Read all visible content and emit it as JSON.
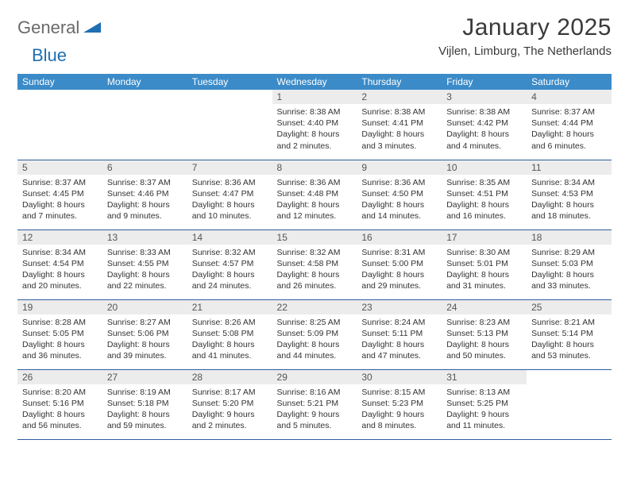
{
  "brand": {
    "part1": "General",
    "part2": "Blue"
  },
  "title": "January 2025",
  "location": "Vijlen, Limburg, The Netherlands",
  "colors": {
    "header_bg": "#3b8bc8",
    "header_text": "#ffffff",
    "daynum_bg": "#ececec",
    "border": "#2f5e9e",
    "logo_gray": "#6a6a6a",
    "logo_blue": "#1f6fb2"
  },
  "weekdays": [
    "Sunday",
    "Monday",
    "Tuesday",
    "Wednesday",
    "Thursday",
    "Friday",
    "Saturday"
  ],
  "weeks": [
    [
      {
        "empty": true
      },
      {
        "empty": true
      },
      {
        "empty": true
      },
      {
        "num": "1",
        "sunrise": "Sunrise: 8:38 AM",
        "sunset": "Sunset: 4:40 PM",
        "day1": "Daylight: 8 hours",
        "day2": "and 2 minutes."
      },
      {
        "num": "2",
        "sunrise": "Sunrise: 8:38 AM",
        "sunset": "Sunset: 4:41 PM",
        "day1": "Daylight: 8 hours",
        "day2": "and 3 minutes."
      },
      {
        "num": "3",
        "sunrise": "Sunrise: 8:38 AM",
        "sunset": "Sunset: 4:42 PM",
        "day1": "Daylight: 8 hours",
        "day2": "and 4 minutes."
      },
      {
        "num": "4",
        "sunrise": "Sunrise: 8:37 AM",
        "sunset": "Sunset: 4:44 PM",
        "day1": "Daylight: 8 hours",
        "day2": "and 6 minutes."
      }
    ],
    [
      {
        "num": "5",
        "sunrise": "Sunrise: 8:37 AM",
        "sunset": "Sunset: 4:45 PM",
        "day1": "Daylight: 8 hours",
        "day2": "and 7 minutes."
      },
      {
        "num": "6",
        "sunrise": "Sunrise: 8:37 AM",
        "sunset": "Sunset: 4:46 PM",
        "day1": "Daylight: 8 hours",
        "day2": "and 9 minutes."
      },
      {
        "num": "7",
        "sunrise": "Sunrise: 8:36 AM",
        "sunset": "Sunset: 4:47 PM",
        "day1": "Daylight: 8 hours",
        "day2": "and 10 minutes."
      },
      {
        "num": "8",
        "sunrise": "Sunrise: 8:36 AM",
        "sunset": "Sunset: 4:48 PM",
        "day1": "Daylight: 8 hours",
        "day2": "and 12 minutes."
      },
      {
        "num": "9",
        "sunrise": "Sunrise: 8:36 AM",
        "sunset": "Sunset: 4:50 PM",
        "day1": "Daylight: 8 hours",
        "day2": "and 14 minutes."
      },
      {
        "num": "10",
        "sunrise": "Sunrise: 8:35 AM",
        "sunset": "Sunset: 4:51 PM",
        "day1": "Daylight: 8 hours",
        "day2": "and 16 minutes."
      },
      {
        "num": "11",
        "sunrise": "Sunrise: 8:34 AM",
        "sunset": "Sunset: 4:53 PM",
        "day1": "Daylight: 8 hours",
        "day2": "and 18 minutes."
      }
    ],
    [
      {
        "num": "12",
        "sunrise": "Sunrise: 8:34 AM",
        "sunset": "Sunset: 4:54 PM",
        "day1": "Daylight: 8 hours",
        "day2": "and 20 minutes."
      },
      {
        "num": "13",
        "sunrise": "Sunrise: 8:33 AM",
        "sunset": "Sunset: 4:55 PM",
        "day1": "Daylight: 8 hours",
        "day2": "and 22 minutes."
      },
      {
        "num": "14",
        "sunrise": "Sunrise: 8:32 AM",
        "sunset": "Sunset: 4:57 PM",
        "day1": "Daylight: 8 hours",
        "day2": "and 24 minutes."
      },
      {
        "num": "15",
        "sunrise": "Sunrise: 8:32 AM",
        "sunset": "Sunset: 4:58 PM",
        "day1": "Daylight: 8 hours",
        "day2": "and 26 minutes."
      },
      {
        "num": "16",
        "sunrise": "Sunrise: 8:31 AM",
        "sunset": "Sunset: 5:00 PM",
        "day1": "Daylight: 8 hours",
        "day2": "and 29 minutes."
      },
      {
        "num": "17",
        "sunrise": "Sunrise: 8:30 AM",
        "sunset": "Sunset: 5:01 PM",
        "day1": "Daylight: 8 hours",
        "day2": "and 31 minutes."
      },
      {
        "num": "18",
        "sunrise": "Sunrise: 8:29 AM",
        "sunset": "Sunset: 5:03 PM",
        "day1": "Daylight: 8 hours",
        "day2": "and 33 minutes."
      }
    ],
    [
      {
        "num": "19",
        "sunrise": "Sunrise: 8:28 AM",
        "sunset": "Sunset: 5:05 PM",
        "day1": "Daylight: 8 hours",
        "day2": "and 36 minutes."
      },
      {
        "num": "20",
        "sunrise": "Sunrise: 8:27 AM",
        "sunset": "Sunset: 5:06 PM",
        "day1": "Daylight: 8 hours",
        "day2": "and 39 minutes."
      },
      {
        "num": "21",
        "sunrise": "Sunrise: 8:26 AM",
        "sunset": "Sunset: 5:08 PM",
        "day1": "Daylight: 8 hours",
        "day2": "and 41 minutes."
      },
      {
        "num": "22",
        "sunrise": "Sunrise: 8:25 AM",
        "sunset": "Sunset: 5:09 PM",
        "day1": "Daylight: 8 hours",
        "day2": "and 44 minutes."
      },
      {
        "num": "23",
        "sunrise": "Sunrise: 8:24 AM",
        "sunset": "Sunset: 5:11 PM",
        "day1": "Daylight: 8 hours",
        "day2": "and 47 minutes."
      },
      {
        "num": "24",
        "sunrise": "Sunrise: 8:23 AM",
        "sunset": "Sunset: 5:13 PM",
        "day1": "Daylight: 8 hours",
        "day2": "and 50 minutes."
      },
      {
        "num": "25",
        "sunrise": "Sunrise: 8:21 AM",
        "sunset": "Sunset: 5:14 PM",
        "day1": "Daylight: 8 hours",
        "day2": "and 53 minutes."
      }
    ],
    [
      {
        "num": "26",
        "sunrise": "Sunrise: 8:20 AM",
        "sunset": "Sunset: 5:16 PM",
        "day1": "Daylight: 8 hours",
        "day2": "and 56 minutes."
      },
      {
        "num": "27",
        "sunrise": "Sunrise: 8:19 AM",
        "sunset": "Sunset: 5:18 PM",
        "day1": "Daylight: 8 hours",
        "day2": "and 59 minutes."
      },
      {
        "num": "28",
        "sunrise": "Sunrise: 8:17 AM",
        "sunset": "Sunset: 5:20 PM",
        "day1": "Daylight: 9 hours",
        "day2": "and 2 minutes."
      },
      {
        "num": "29",
        "sunrise": "Sunrise: 8:16 AM",
        "sunset": "Sunset: 5:21 PM",
        "day1": "Daylight: 9 hours",
        "day2": "and 5 minutes."
      },
      {
        "num": "30",
        "sunrise": "Sunrise: 8:15 AM",
        "sunset": "Sunset: 5:23 PM",
        "day1": "Daylight: 9 hours",
        "day2": "and 8 minutes."
      },
      {
        "num": "31",
        "sunrise": "Sunrise: 8:13 AM",
        "sunset": "Sunset: 5:25 PM",
        "day1": "Daylight: 9 hours",
        "day2": "and 11 minutes."
      },
      {
        "empty": true
      }
    ]
  ]
}
